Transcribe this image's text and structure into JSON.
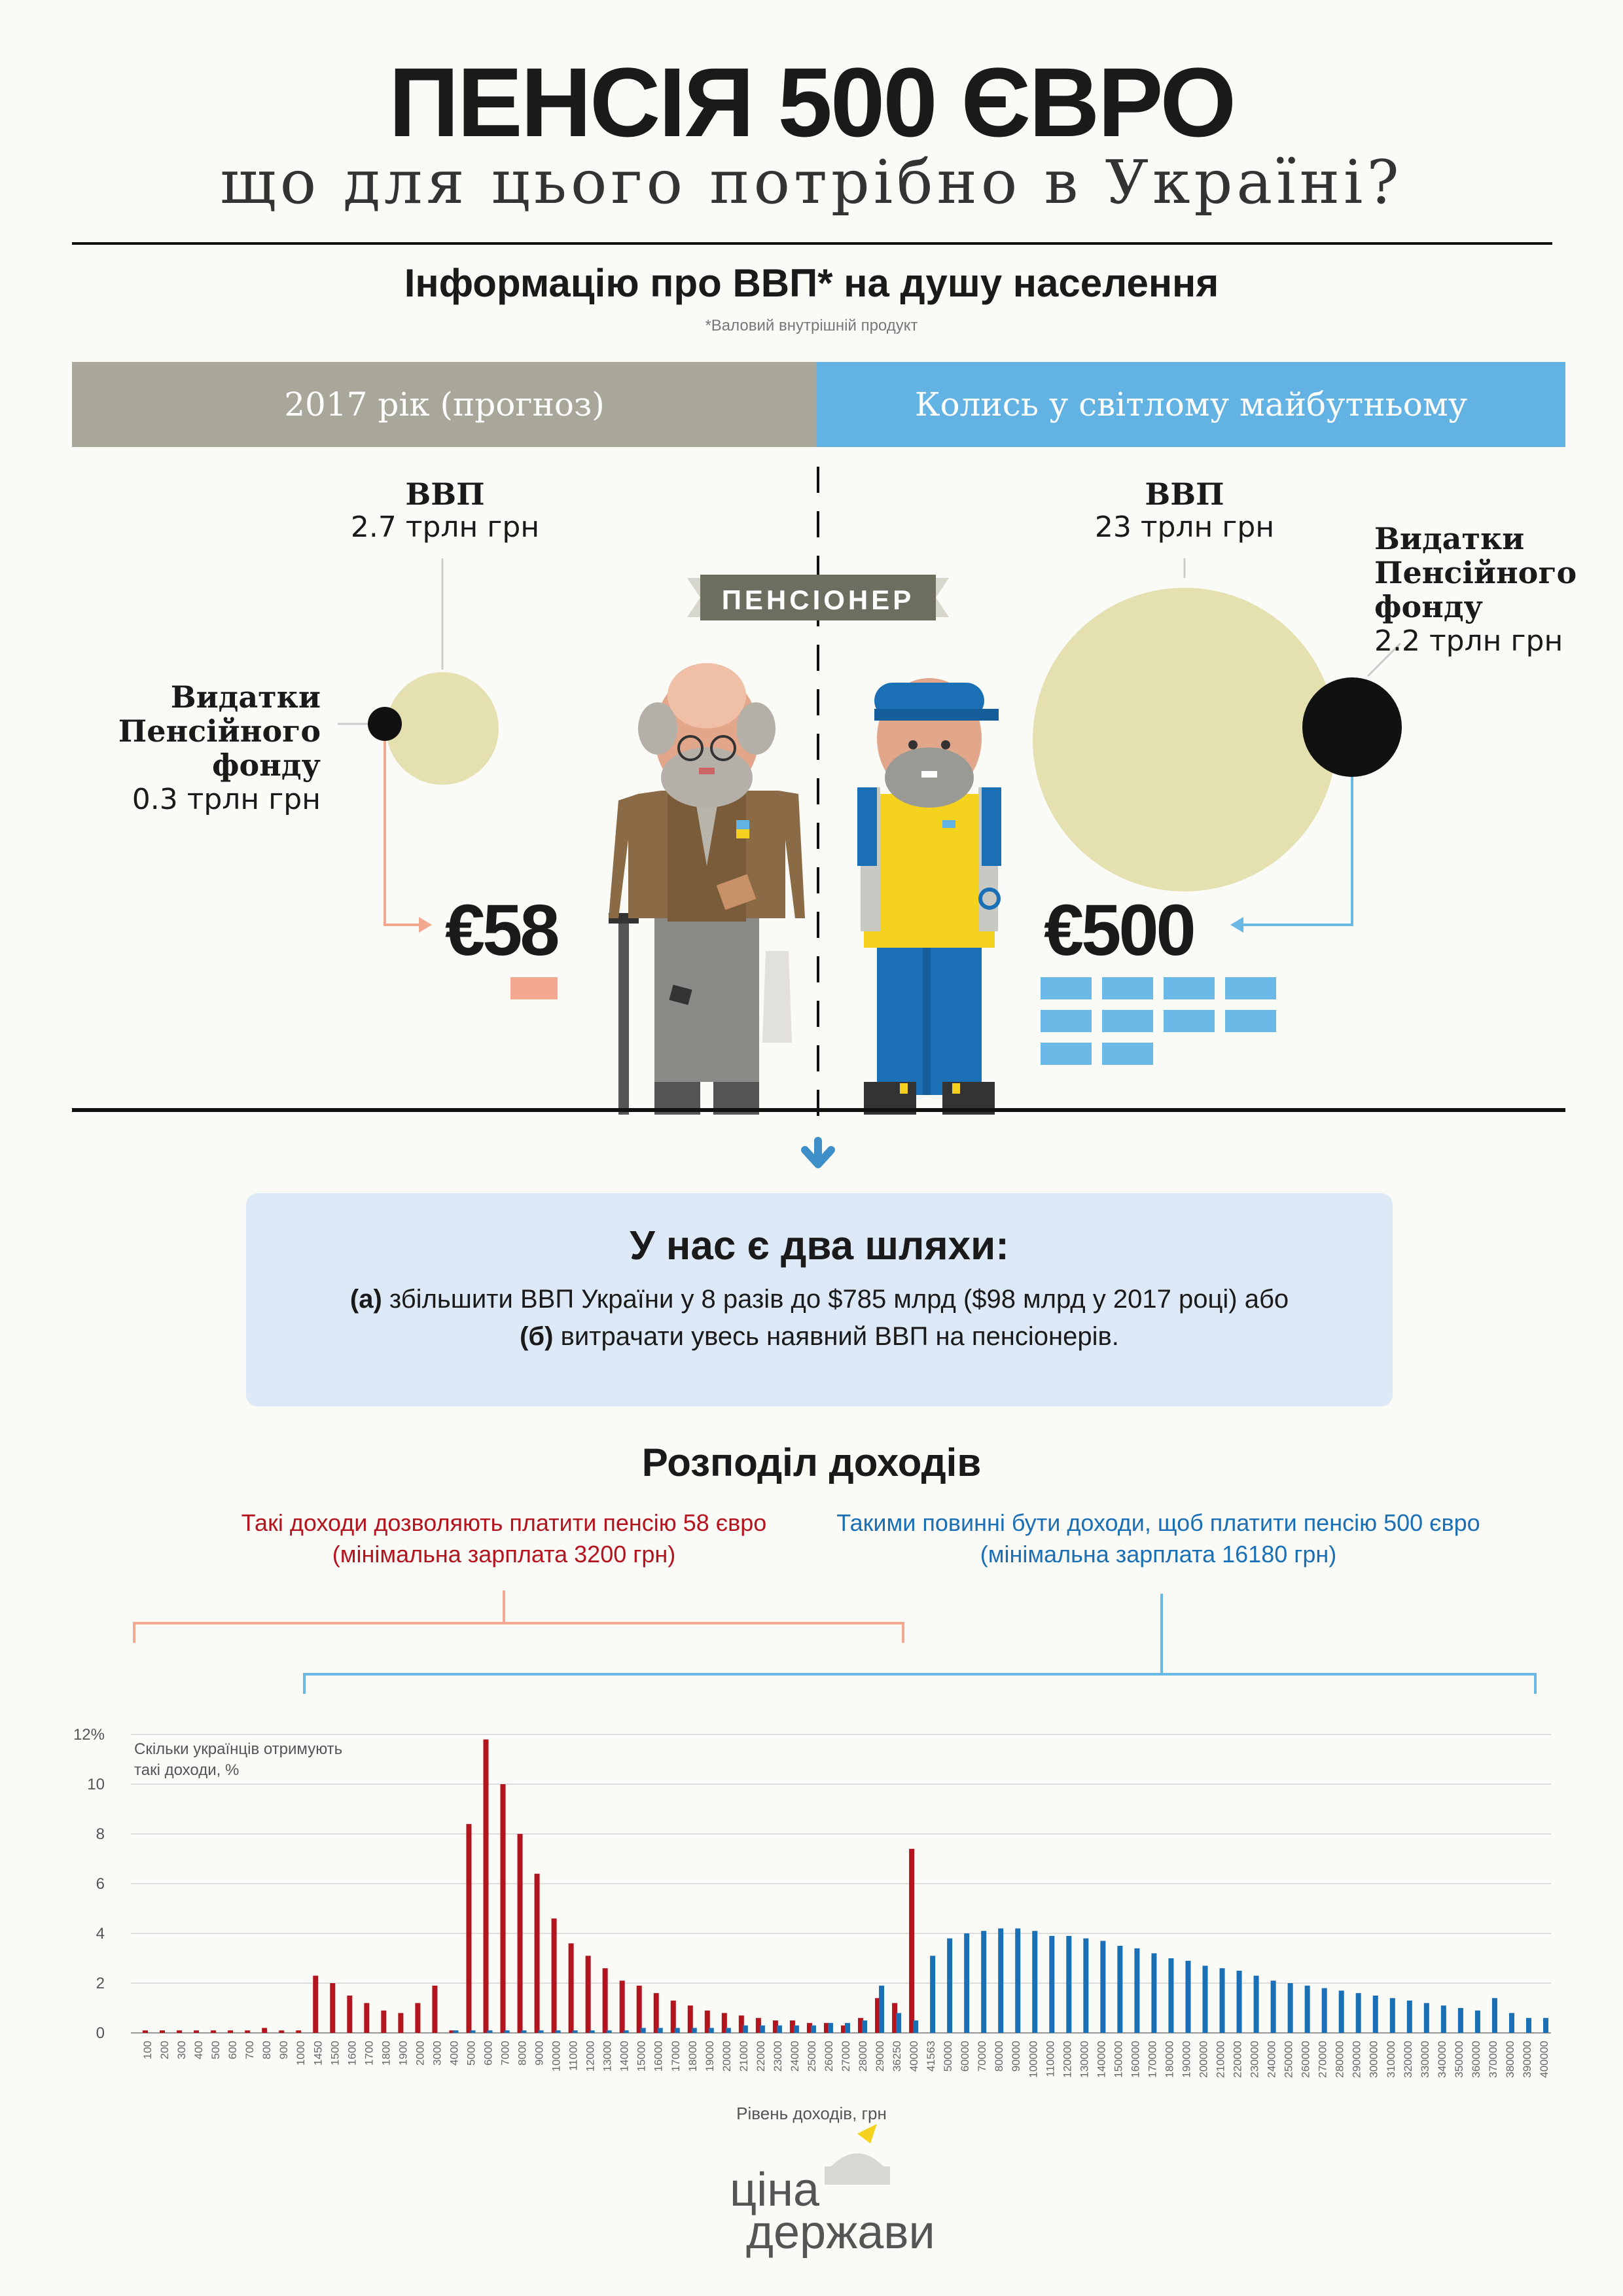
{
  "header": {
    "title": "ПЕНСІЯ 500 ЄВРО",
    "subtitle": "що для цього потрібно в Україні?"
  },
  "gdp": {
    "heading": "Інформацію про ВВП* на душу населення",
    "footnote": "*Валовий внутрішній продукт"
  },
  "bands": {
    "left": "2017 рік (прогноз)",
    "right": "Колись у світлому майбутньому"
  },
  "banner": "ПЕНСІОНЕР",
  "left_side": {
    "gdp_label": "ВВП",
    "gdp_value": "2.7 трлн грн",
    "fund_line1": "Видатки",
    "fund_line2": "Пенсійного",
    "fund_line3": "фонду",
    "fund_value": "0.3 трлн грн",
    "pension": "€58"
  },
  "right_side": {
    "gdp_label": "ВВП",
    "gdp_value": "23 трлн грн",
    "fund_line1": "Видатки",
    "fund_line2": "Пенсійного",
    "fund_line3": "фонду",
    "fund_value": "2.2 трлн грн",
    "pension": "€500"
  },
  "paths": {
    "title": "У нас є два шляхи:",
    "a_marker": "(а)",
    "a_text": " збільшити ВВП України у 8 разів до $785 млрд ($98 млрд у 2017 році) або",
    "b_marker": "(б)",
    "b_text": " витрачати увесь наявний ВВП на пенсіонерів."
  },
  "distribution": {
    "title": "Розподіл доходів",
    "left_note_1": "Такі доходи дозволяють платити пенсію 58 євро",
    "left_note_2": "(мінімальна зарплата 3200 грн)",
    "right_note_1": "Такими повинні бути доходи, щоб платити пенсію 500 євро",
    "right_note_2": "(мінімальна зарплата 16180 грн)"
  },
  "colors": {
    "grey_band": "#a8a79a",
    "blue_band": "#62b3e4",
    "red": "#b4141e",
    "blue": "#1b6fb5",
    "circle": "#e4e0b0",
    "salmon": "#f2a98f",
    "light_blue": "#6ab8e6"
  },
  "chart_data": {
    "type": "bar",
    "ylabel": "Скільки українців отримують такі доходи, %",
    "xlabel": "Рівень доходів, грн",
    "ylim": [
      0,
      12
    ],
    "yticks": [
      "12%",
      "10",
      "8",
      "6",
      "4",
      "2",
      "0"
    ],
    "categories": [
      "100",
      "200",
      "300",
      "400",
      "500",
      "600",
      "700",
      "800",
      "900",
      "1000",
      "1450",
      "1500",
      "1600",
      "1700",
      "1800",
      "1900",
      "2000",
      "3000",
      "4000",
      "5000",
      "6000",
      "7000",
      "8000",
      "9000",
      "10000",
      "11000",
      "12000",
      "13000",
      "14000",
      "15000",
      "16000",
      "17000",
      "18000",
      "19000",
      "20000",
      "21000",
      "22000",
      "23000",
      "24000",
      "25000",
      "26000",
      "27000",
      "28000",
      "29000",
      "36250",
      "40000",
      "41563",
      "50000",
      "60000",
      "70000",
      "80000",
      "90000",
      "100000",
      "110000",
      "120000",
      "130000",
      "140000",
      "150000",
      "160000",
      "170000",
      "180000",
      "190000",
      "200000",
      "210000",
      "220000",
      "230000",
      "240000",
      "250000",
      "260000",
      "270000",
      "280000",
      "290000",
      "300000",
      "310000",
      "320000",
      "330000",
      "340000",
      "350000",
      "360000",
      "370000",
      "380000",
      "390000",
      "400000"
    ],
    "series": [
      {
        "values": [
          0.1,
          0.1,
          0.1,
          0.1,
          0.1,
          0.1,
          0.1,
          0.2,
          0.1,
          0.1,
          2.3,
          2.0,
          1.5,
          1.2,
          0.9,
          0.8,
          1.2,
          1.9,
          0.1,
          8.4,
          11.8,
          10.0,
          8.0,
          6.4,
          4.6,
          3.6,
          3.1,
          2.6,
          2.1,
          1.9,
          1.6,
          1.3,
          1.1,
          0.9,
          0.8,
          0.7,
          0.6,
          0.5,
          0.5,
          0.4,
          0.4,
          0.3,
          0.6,
          1.4,
          1.2,
          7.4,
          0,
          0,
          0,
          0,
          0,
          0,
          0,
          0,
          0,
          0,
          0,
          0,
          0,
          0,
          0,
          0,
          0,
          0,
          0,
          0,
          0,
          0,
          0,
          0,
          0,
          0,
          0,
          0,
          0,
          0,
          0,
          0,
          0,
          0,
          0,
          0,
          0
        ]
      },
      {
        "values": [
          0,
          0,
          0,
          0,
          0,
          0,
          0,
          0,
          0,
          0,
          0,
          0,
          0,
          0,
          0,
          0,
          0,
          0,
          0.1,
          0.1,
          0.1,
          0.1,
          0.1,
          0.1,
          0.1,
          0.1,
          0.1,
          0.1,
          0.1,
          0.2,
          0.2,
          0.2,
          0.2,
          0.2,
          0.2,
          0.3,
          0.3,
          0.3,
          0.3,
          0.3,
          0.4,
          0.4,
          0.5,
          1.9,
          0.8,
          0.5,
          3.1,
          3.8,
          4.0,
          4.1,
          4.2,
          4.2,
          4.1,
          3.9,
          3.9,
          3.8,
          3.7,
          3.5,
          3.4,
          3.2,
          3.0,
          2.9,
          2.7,
          2.6,
          2.5,
          2.3,
          2.1,
          2.0,
          1.9,
          1.8,
          1.7,
          1.6,
          1.5,
          1.4,
          1.3,
          1.2,
          1.1,
          1.0,
          0.9,
          1.4,
          0.8,
          0.6,
          0.6
        ]
      }
    ]
  },
  "logo": {
    "line1": "ціна",
    "line2": "держави"
  }
}
